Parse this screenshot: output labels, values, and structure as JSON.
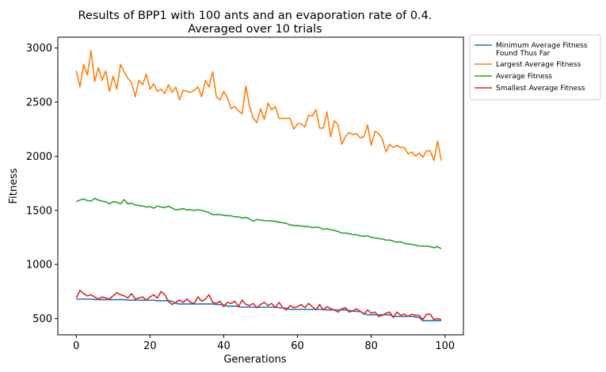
{
  "chart_data": {
    "type": "line",
    "title": "Results of BPP1 with 100 ants and an evaporation rate of 0.4.",
    "subtitle": "Averaged over 10 trials",
    "xlabel": "Generations",
    "ylabel": "Fitness",
    "xlim": [
      -5,
      105
    ],
    "ylim": [
      350,
      3100
    ],
    "xticks": [
      0,
      20,
      40,
      60,
      80,
      100
    ],
    "yticks": [
      500,
      1000,
      1500,
      2000,
      2500,
      3000
    ],
    "grid": false,
    "legend_position": "outside-right",
    "x": [
      0,
      1,
      2,
      3,
      4,
      5,
      6,
      7,
      8,
      9,
      10,
      11,
      12,
      13,
      14,
      15,
      16,
      17,
      18,
      19,
      20,
      21,
      22,
      23,
      24,
      25,
      26,
      27,
      28,
      29,
      30,
      31,
      32,
      33,
      34,
      35,
      36,
      37,
      38,
      39,
      40,
      41,
      42,
      43,
      44,
      45,
      46,
      47,
      48,
      49,
      50,
      51,
      52,
      53,
      54,
      55,
      56,
      57,
      58,
      59,
      60,
      61,
      62,
      63,
      64,
      65,
      66,
      67,
      68,
      69,
      70,
      71,
      72,
      73,
      74,
      75,
      76,
      77,
      78,
      79,
      80,
      81,
      82,
      83,
      84,
      85,
      86,
      87,
      88,
      89,
      90,
      91,
      92,
      93,
      94,
      95,
      96,
      97,
      98,
      99
    ],
    "series": [
      {
        "name": "Minimum Average Fitness\nFound Thus Far",
        "color": "#1f77b4",
        "values": [
          680,
          680,
          680,
          680,
          680,
          675,
          675,
          675,
          675,
          675,
          675,
          675,
          675,
          675,
          670,
          670,
          670,
          670,
          670,
          670,
          670,
          670,
          665,
          665,
          665,
          665,
          660,
          640,
          635,
          635,
          635,
          635,
          635,
          635,
          635,
          635,
          635,
          635,
          630,
          630,
          625,
          615,
          615,
          615,
          610,
          605,
          605,
          605,
          605,
          605,
          605,
          605,
          605,
          605,
          605,
          600,
          600,
          595,
          585,
          585,
          585,
          585,
          585,
          585,
          585,
          585,
          585,
          585,
          580,
          580,
          580,
          580,
          580,
          580,
          575,
          570,
          565,
          565,
          545,
          535,
          535,
          535,
          535,
          535,
          535,
          535,
          520,
          520,
          520,
          520,
          520,
          520,
          515,
          510,
          480,
          480,
          480,
          480,
          480,
          480
        ]
      },
      {
        "name": "Largest Average Fitness",
        "color": "#ff7f0e",
        "values": [
          2790,
          2640,
          2850,
          2750,
          2975,
          2690,
          2820,
          2700,
          2790,
          2600,
          2740,
          2620,
          2850,
          2780,
          2720,
          2680,
          2550,
          2700,
          2660,
          2760,
          2620,
          2670,
          2600,
          2620,
          2580,
          2660,
          2590,
          2640,
          2520,
          2610,
          2600,
          2590,
          2610,
          2640,
          2550,
          2700,
          2640,
          2780,
          2550,
          2520,
          2600,
          2540,
          2440,
          2460,
          2420,
          2390,
          2650,
          2460,
          2350,
          2310,
          2440,
          2340,
          2490,
          2430,
          2460,
          2350,
          2350,
          2350,
          2350,
          2250,
          2300,
          2300,
          2270,
          2380,
          2370,
          2430,
          2260,
          2260,
          2410,
          2180,
          2330,
          2290,
          2110,
          2180,
          2220,
          2200,
          2210,
          2170,
          2180,
          2290,
          2100,
          2230,
          2210,
          2160,
          2040,
          2110,
          2080,
          2100,
          2080,
          2080,
          2020,
          2040,
          2000,
          2030,
          1990,
          2050,
          2050,
          1960,
          2140,
          1960
        ]
      },
      {
        "name": "Average Fitness",
        "color": "#2ca02c",
        "values": [
          1580,
          1595,
          1605,
          1590,
          1585,
          1610,
          1595,
          1585,
          1580,
          1560,
          1580,
          1575,
          1560,
          1600,
          1560,
          1565,
          1550,
          1545,
          1540,
          1530,
          1535,
          1520,
          1540,
          1530,
          1525,
          1540,
          1520,
          1505,
          1510,
          1515,
          1505,
          1505,
          1500,
          1505,
          1500,
          1490,
          1480,
          1460,
          1460,
          1460,
          1455,
          1450,
          1450,
          1440,
          1440,
          1430,
          1435,
          1420,
          1400,
          1415,
          1410,
          1405,
          1405,
          1400,
          1400,
          1390,
          1385,
          1380,
          1365,
          1360,
          1360,
          1355,
          1350,
          1350,
          1340,
          1345,
          1340,
          1325,
          1330,
          1320,
          1315,
          1305,
          1290,
          1290,
          1285,
          1275,
          1275,
          1265,
          1260,
          1265,
          1250,
          1245,
          1240,
          1235,
          1225,
          1225,
          1215,
          1205,
          1210,
          1195,
          1190,
          1185,
          1180,
          1170,
          1170,
          1170,
          1165,
          1155,
          1165,
          1145
        ]
      },
      {
        "name": "Smallest Average Fitness",
        "color": "#d62728",
        "values": [
          690,
          760,
          730,
          710,
          720,
          700,
          680,
          700,
          690,
          680,
          710,
          740,
          720,
          710,
          690,
          730,
          680,
          690,
          700,
          670,
          700,
          720,
          690,
          750,
          720,
          660,
          630,
          650,
          670,
          650,
          680,
          650,
          640,
          700,
          660,
          680,
          720,
          650,
          640,
          660,
          610,
          650,
          640,
          660,
          610,
          670,
          630,
          620,
          640,
          600,
          630,
          650,
          620,
          640,
          600,
          650,
          600,
          580,
          620,
          600,
          610,
          630,
          600,
          640,
          610,
          580,
          630,
          580,
          610,
          590,
          580,
          560,
          590,
          600,
          560,
          570,
          590,
          570,
          540,
          580,
          550,
          560,
          520,
          530,
          550,
          560,
          510,
          560,
          530,
          540,
          520,
          540,
          530,
          530,
          490,
          540,
          540,
          490,
          500,
          490
        ]
      }
    ]
  }
}
